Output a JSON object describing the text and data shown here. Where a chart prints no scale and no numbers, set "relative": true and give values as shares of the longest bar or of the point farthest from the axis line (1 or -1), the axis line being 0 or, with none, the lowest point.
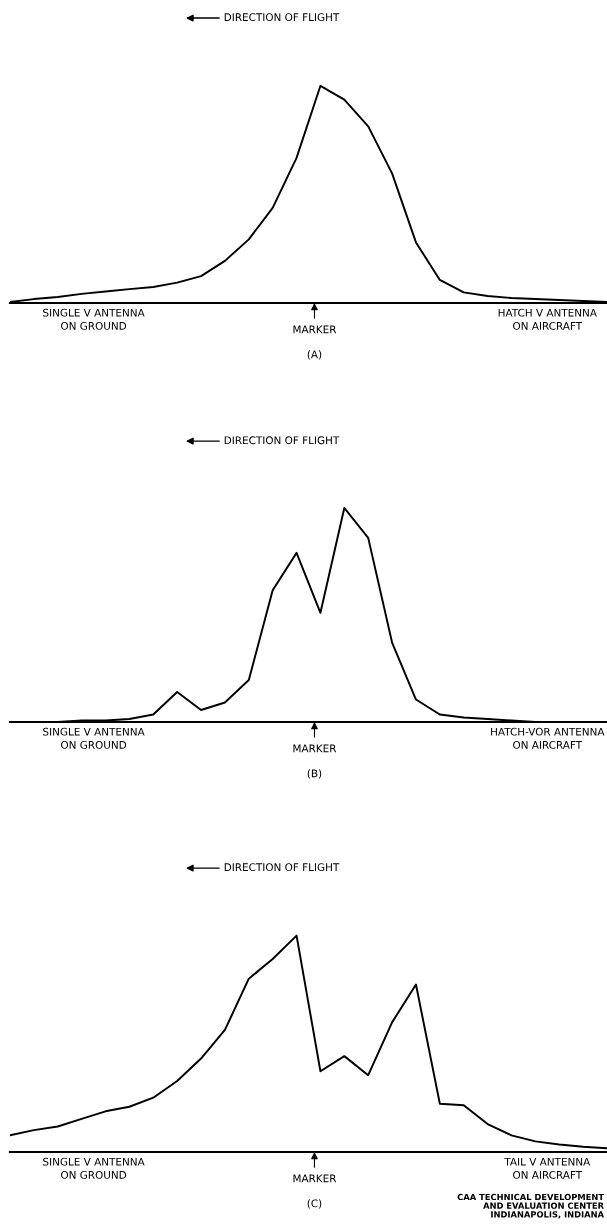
{
  "chart_data": [
    {
      "type": "line",
      "relative": true,
      "categories": [
        null,
        null,
        null,
        null,
        null,
        null,
        null,
        null,
        null,
        null,
        null,
        null,
        null,
        null,
        null,
        null,
        null,
        null,
        null,
        null,
        null,
        null,
        null,
        null,
        null,
        null
      ],
      "series": [
        {
          "color": "#000000",
          "values": [
            0.005,
            0.018,
            0.028,
            0.042,
            0.053,
            0.064,
            0.074,
            0.094,
            0.124,
            0.194,
            0.293,
            0.438,
            0.668,
            1.0,
            0.936,
            0.813,
            0.597,
            0.279,
            0.106,
            0.049,
            0.032,
            0.023,
            0.018,
            0.014,
            0.009,
            0.005
          ]
        }
      ],
      "annotations": [
        "DIRECTION OF FLIGHT",
        "SINGLE V ANTENNA\nON GROUND",
        "MARKER",
        "HATCH V ANTENNA\nON AIRCRAFT",
        "(A)"
      ]
    },
    {
      "type": "line",
      "relative": true,
      "categories": [
        null,
        null,
        null,
        null,
        null,
        null,
        null,
        null,
        null,
        null,
        null,
        null,
        null,
        null,
        null,
        null,
        null,
        null,
        null,
        null,
        null,
        null,
        null,
        null,
        null,
        null
      ],
      "series": [
        {
          "color": "#000000",
          "values": [
            0,
            0,
            0,
            0.007,
            0.007,
            0.014,
            0.035,
            0.14,
            0.056,
            0.091,
            0.196,
            0.615,
            0.79,
            0.51,
            1.0,
            0.86,
            0.371,
            0.105,
            0.035,
            0.021,
            0.014,
            0.007,
            0,
            0,
            0,
            0
          ]
        }
      ],
      "annotations": [
        "DIRECTION OF FLIGHT",
        "SINGLE V ANTENNA\nON GROUND",
        "MARKER",
        "HATCH-VOR ANTENNA\nON AIRCRAFT",
        "(B)"
      ]
    },
    {
      "type": "line",
      "relative": true,
      "categories": [
        null,
        null,
        null,
        null,
        null,
        null,
        null,
        null,
        null,
        null,
        null,
        null,
        null,
        null,
        null,
        null,
        null,
        null,
        null,
        null,
        null,
        null,
        null,
        null,
        null,
        null
      ],
      "series": [
        {
          "color": "#000000",
          "values": [
            0.077,
            0.101,
            0.118,
            0.153,
            0.188,
            0.209,
            0.251,
            0.328,
            0.432,
            0.564,
            0.801,
            0.892,
            1.0,
            0.373,
            0.443,
            0.355,
            0.599,
            0.774,
            0.223,
            0.216,
            0.129,
            0.077,
            0.049,
            0.035,
            0.024,
            0.017
          ]
        }
      ],
      "annotations": [
        "DIRECTION OF FLIGHT",
        "SINGLE V ANTENNA\nON GROUND",
        "MARKER",
        "TAIL V ANTENNA\nON AIRCRAFT",
        "(C)",
        "CAA TECHNICAL DEVELOPMENT\nAND EVALUATION CENTER\nINDIANAPOLIS, INDIANA"
      ]
    }
  ]
}
